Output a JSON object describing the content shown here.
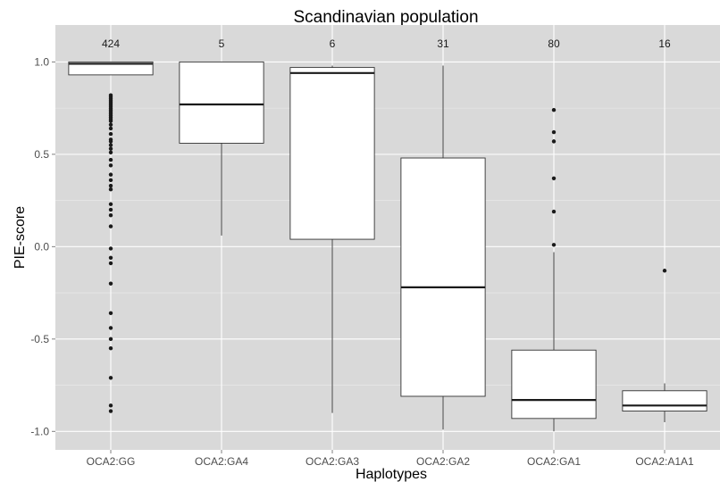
{
  "chart_data": {
    "type": "boxplot",
    "title": "Scandinavian population",
    "xlabel": "Haplotypes",
    "ylabel": "PIE-score",
    "ylim": [
      -1.1,
      1.2
    ],
    "yticks": [
      1.0,
      0.5,
      0.0,
      -0.5,
      -1.0
    ],
    "ytick_labels": [
      "1.0",
      "0.5",
      "0.0",
      "-0.5",
      "-1.0"
    ],
    "grid": true,
    "background": "#d9d9d9",
    "categories": [
      "OCA2:GG",
      "OCA2:GA4",
      "OCA2:GA3",
      "OCA2:GA2",
      "OCA2:GA1",
      "OCA2:A1A1"
    ],
    "counts": [
      "424",
      "5",
      "6",
      "31",
      "80",
      "16"
    ],
    "boxes": [
      {
        "whisker_low": 0.93,
        "q1": 0.93,
        "median": 0.99,
        "q3": 1.0,
        "whisker_high": 1.0,
        "outliers": [
          0.82,
          0.81,
          0.8,
          0.79,
          0.78,
          0.77,
          0.76,
          0.75,
          0.74,
          0.73,
          0.72,
          0.71,
          0.7,
          0.69,
          0.68,
          0.66,
          0.64,
          0.61,
          0.58,
          0.57,
          0.55,
          0.53,
          0.51,
          0.47,
          0.44,
          0.39,
          0.36,
          0.33,
          0.31,
          0.23,
          0.2,
          0.17,
          0.11,
          -0.01,
          -0.06,
          -0.09,
          -0.2,
          -0.36,
          -0.44,
          -0.5,
          -0.55,
          -0.71,
          -0.86,
          -0.89
        ]
      },
      {
        "whisker_low": 0.06,
        "q1": 0.56,
        "median": 0.77,
        "q3": 1.0,
        "whisker_high": 1.0,
        "outliers": []
      },
      {
        "whisker_low": -0.9,
        "q1": 0.04,
        "median": 0.94,
        "q3": 0.97,
        "whisker_high": 0.98,
        "outliers": []
      },
      {
        "whisker_low": -0.99,
        "q1": -0.81,
        "median": -0.22,
        "q3": 0.48,
        "whisker_high": 0.98,
        "outliers": []
      },
      {
        "whisker_low": -1.0,
        "q1": -0.93,
        "median": -0.83,
        "q3": -0.56,
        "whisker_high": -0.03,
        "outliers": [
          0.74,
          0.62,
          0.57,
          0.37,
          0.19,
          0.01
        ]
      },
      {
        "whisker_low": -0.95,
        "q1": -0.89,
        "median": -0.86,
        "q3": -0.78,
        "whisker_high": -0.74,
        "outliers": [
          -0.13
        ]
      }
    ]
  }
}
